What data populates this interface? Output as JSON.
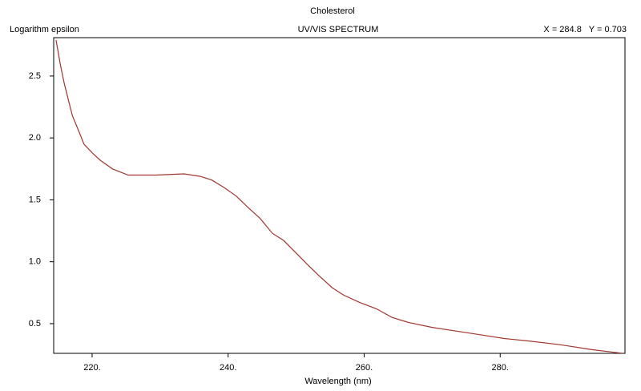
{
  "chart_data": {
    "type": "line",
    "title": "Cholesterol",
    "subtitle": "UV/VIS SPECTRUM",
    "y_label": "Logarithm epsilon",
    "x_label": "Wavelength (nm)",
    "cursor_readout": "X = 284.8   Y = 0.703",
    "x": [
      214.7,
      215.3,
      215.9,
      217.1,
      218.0,
      218.8,
      220.0,
      221.2,
      223.0,
      225.3,
      229.4,
      233.5,
      235.9,
      237.6,
      239.4,
      241.2,
      242.9,
      244.7,
      246.5,
      248.2,
      250.0,
      251.8,
      253.5,
      255.3,
      257.0,
      259.4,
      261.8,
      264.1,
      266.5,
      270.0,
      273.5,
      277.1,
      280.6,
      284.1,
      288.8,
      293.5,
      298.0
    ],
    "series": [
      {
        "name": "Cholesterol",
        "color": "#a3352e",
        "values": [
          2.79,
          2.6,
          2.44,
          2.18,
          2.06,
          1.95,
          1.88,
          1.82,
          1.75,
          1.7,
          1.7,
          1.71,
          1.69,
          1.66,
          1.6,
          1.53,
          1.44,
          1.35,
          1.23,
          1.17,
          1.07,
          0.97,
          0.88,
          0.79,
          0.73,
          0.67,
          0.62,
          0.55,
          0.51,
          0.47,
          0.44,
          0.41,
          0.38,
          0.36,
          0.33,
          0.29,
          0.26
        ]
      }
    ],
    "xlim": [
      214.35,
      298.35
    ],
    "ylim": [
      0.26,
      2.81
    ],
    "xticks": [
      {
        "value": 220,
        "label": "220."
      },
      {
        "value": 240,
        "label": "240."
      },
      {
        "value": 260,
        "label": "260."
      },
      {
        "value": 280,
        "label": "280."
      }
    ],
    "yticks": [
      0.5,
      {
        "value": 1.0,
        "label": "1.0"
      },
      1.5,
      {
        "value": 2.0,
        "label": "2.0"
      },
      2.5
    ],
    "grid": false
  }
}
